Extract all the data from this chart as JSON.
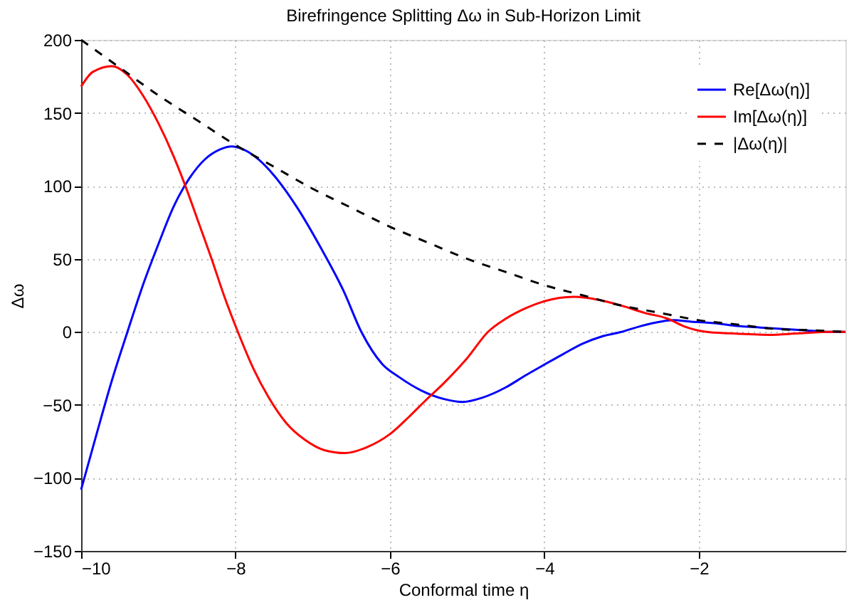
{
  "chart_data": {
    "type": "line",
    "title": "Birefringence Splitting Δω in Sub-Horizon Limit",
    "xlabel": "Conformal time η",
    "ylabel": "Δω",
    "xlim": [
      -10,
      -0.1
    ],
    "xticks": [
      -10,
      -8,
      -6,
      -4,
      -2
    ],
    "ylim": [
      -150,
      200
    ],
    "yticks": [
      -150,
      -100,
      -50,
      0,
      50,
      100,
      150,
      200
    ],
    "grid": true,
    "legend": "top right",
    "marker": "none",
    "series": [
      {
        "name": "Re[Δω(η)]",
        "color": "#0000ff",
        "line_style": "solid",
        "x": [
          -10,
          -9.8,
          -9.6,
          -9.4,
          -9.2,
          -9,
          -8.8,
          -8.6,
          -8.4,
          -8.2,
          -8.05,
          -7.9,
          -7.7,
          -7.5,
          -7.2,
          -6.9,
          -6.6,
          -6.37,
          -6.1,
          -5.88,
          -5.6,
          -5.3,
          -5.06,
          -4.8,
          -4.5,
          -4.25,
          -4.02,
          -3.75,
          -3.5,
          -3.25,
          -3,
          -2.75,
          -2.5,
          -2.33,
          -2.1,
          -1.8,
          -1.5,
          -1.2,
          -0.9,
          -0.6,
          -0.3,
          -0.1
        ],
        "values": [
          -108,
          -70,
          -33,
          0,
          32,
          60,
          86,
          105,
          118,
          125,
          127,
          125,
          118,
          107,
          85,
          58,
          28,
          0,
          -22,
          -31,
          -40,
          -46,
          -48,
          -45,
          -38,
          -30,
          -23,
          -15,
          -8,
          -3,
          0,
          4,
          7,
          8,
          7,
          6,
          4,
          3,
          2,
          1,
          0,
          0
        ]
      },
      {
        "name": "Im[Δω(η)]",
        "color": "#ff0000",
        "line_style": "solid",
        "x": [
          -10,
          -9.85,
          -9.6,
          -9.4,
          -9.2,
          -9,
          -8.8,
          -8.65,
          -8.5,
          -8.31,
          -8.15,
          -7.97,
          -7.77,
          -7.57,
          -7.35,
          -7.1,
          -6.85,
          -6.58,
          -6.3,
          -6,
          -5.75,
          -5.54,
          -5.3,
          -5,
          -4.73,
          -4.5,
          -4.25,
          -4,
          -3.62,
          -3.3,
          -3,
          -2.7,
          -2.4,
          -2.2,
          -1.9,
          -1.6,
          -1.1,
          -0.7,
          -0.3,
          -0.1
        ],
        "values": [
          168,
          178,
          182,
          176,
          162,
          143,
          120,
          100,
          78,
          50,
          25,
          0,
          -25,
          -45,
          -62,
          -74,
          -81,
          -83,
          -79,
          -70,
          -58,
          -47,
          -35,
          -18,
          0,
          9,
          16,
          21,
          24,
          22,
          18,
          13,
          9,
          4,
          0,
          -1,
          -2,
          -1,
          0,
          0
        ]
      },
      {
        "name": "|Δω(η)|",
        "color": "#000000",
        "line_style": "dashed",
        "x": [
          -10,
          -9.5,
          -9,
          -8.5,
          -8,
          -7.5,
          -7,
          -6.5,
          -6,
          -5.5,
          -5,
          -4.5,
          -4,
          -3.5,
          -3,
          -2.5,
          -2,
          -1.5,
          -1,
          -0.5,
          -0.1
        ],
        "values": [
          200,
          181,
          162,
          145,
          128,
          113,
          98,
          85,
          72,
          61,
          50,
          41,
          32,
          25,
          18,
          13,
          8,
          5,
          2,
          1,
          0
        ]
      }
    ]
  }
}
